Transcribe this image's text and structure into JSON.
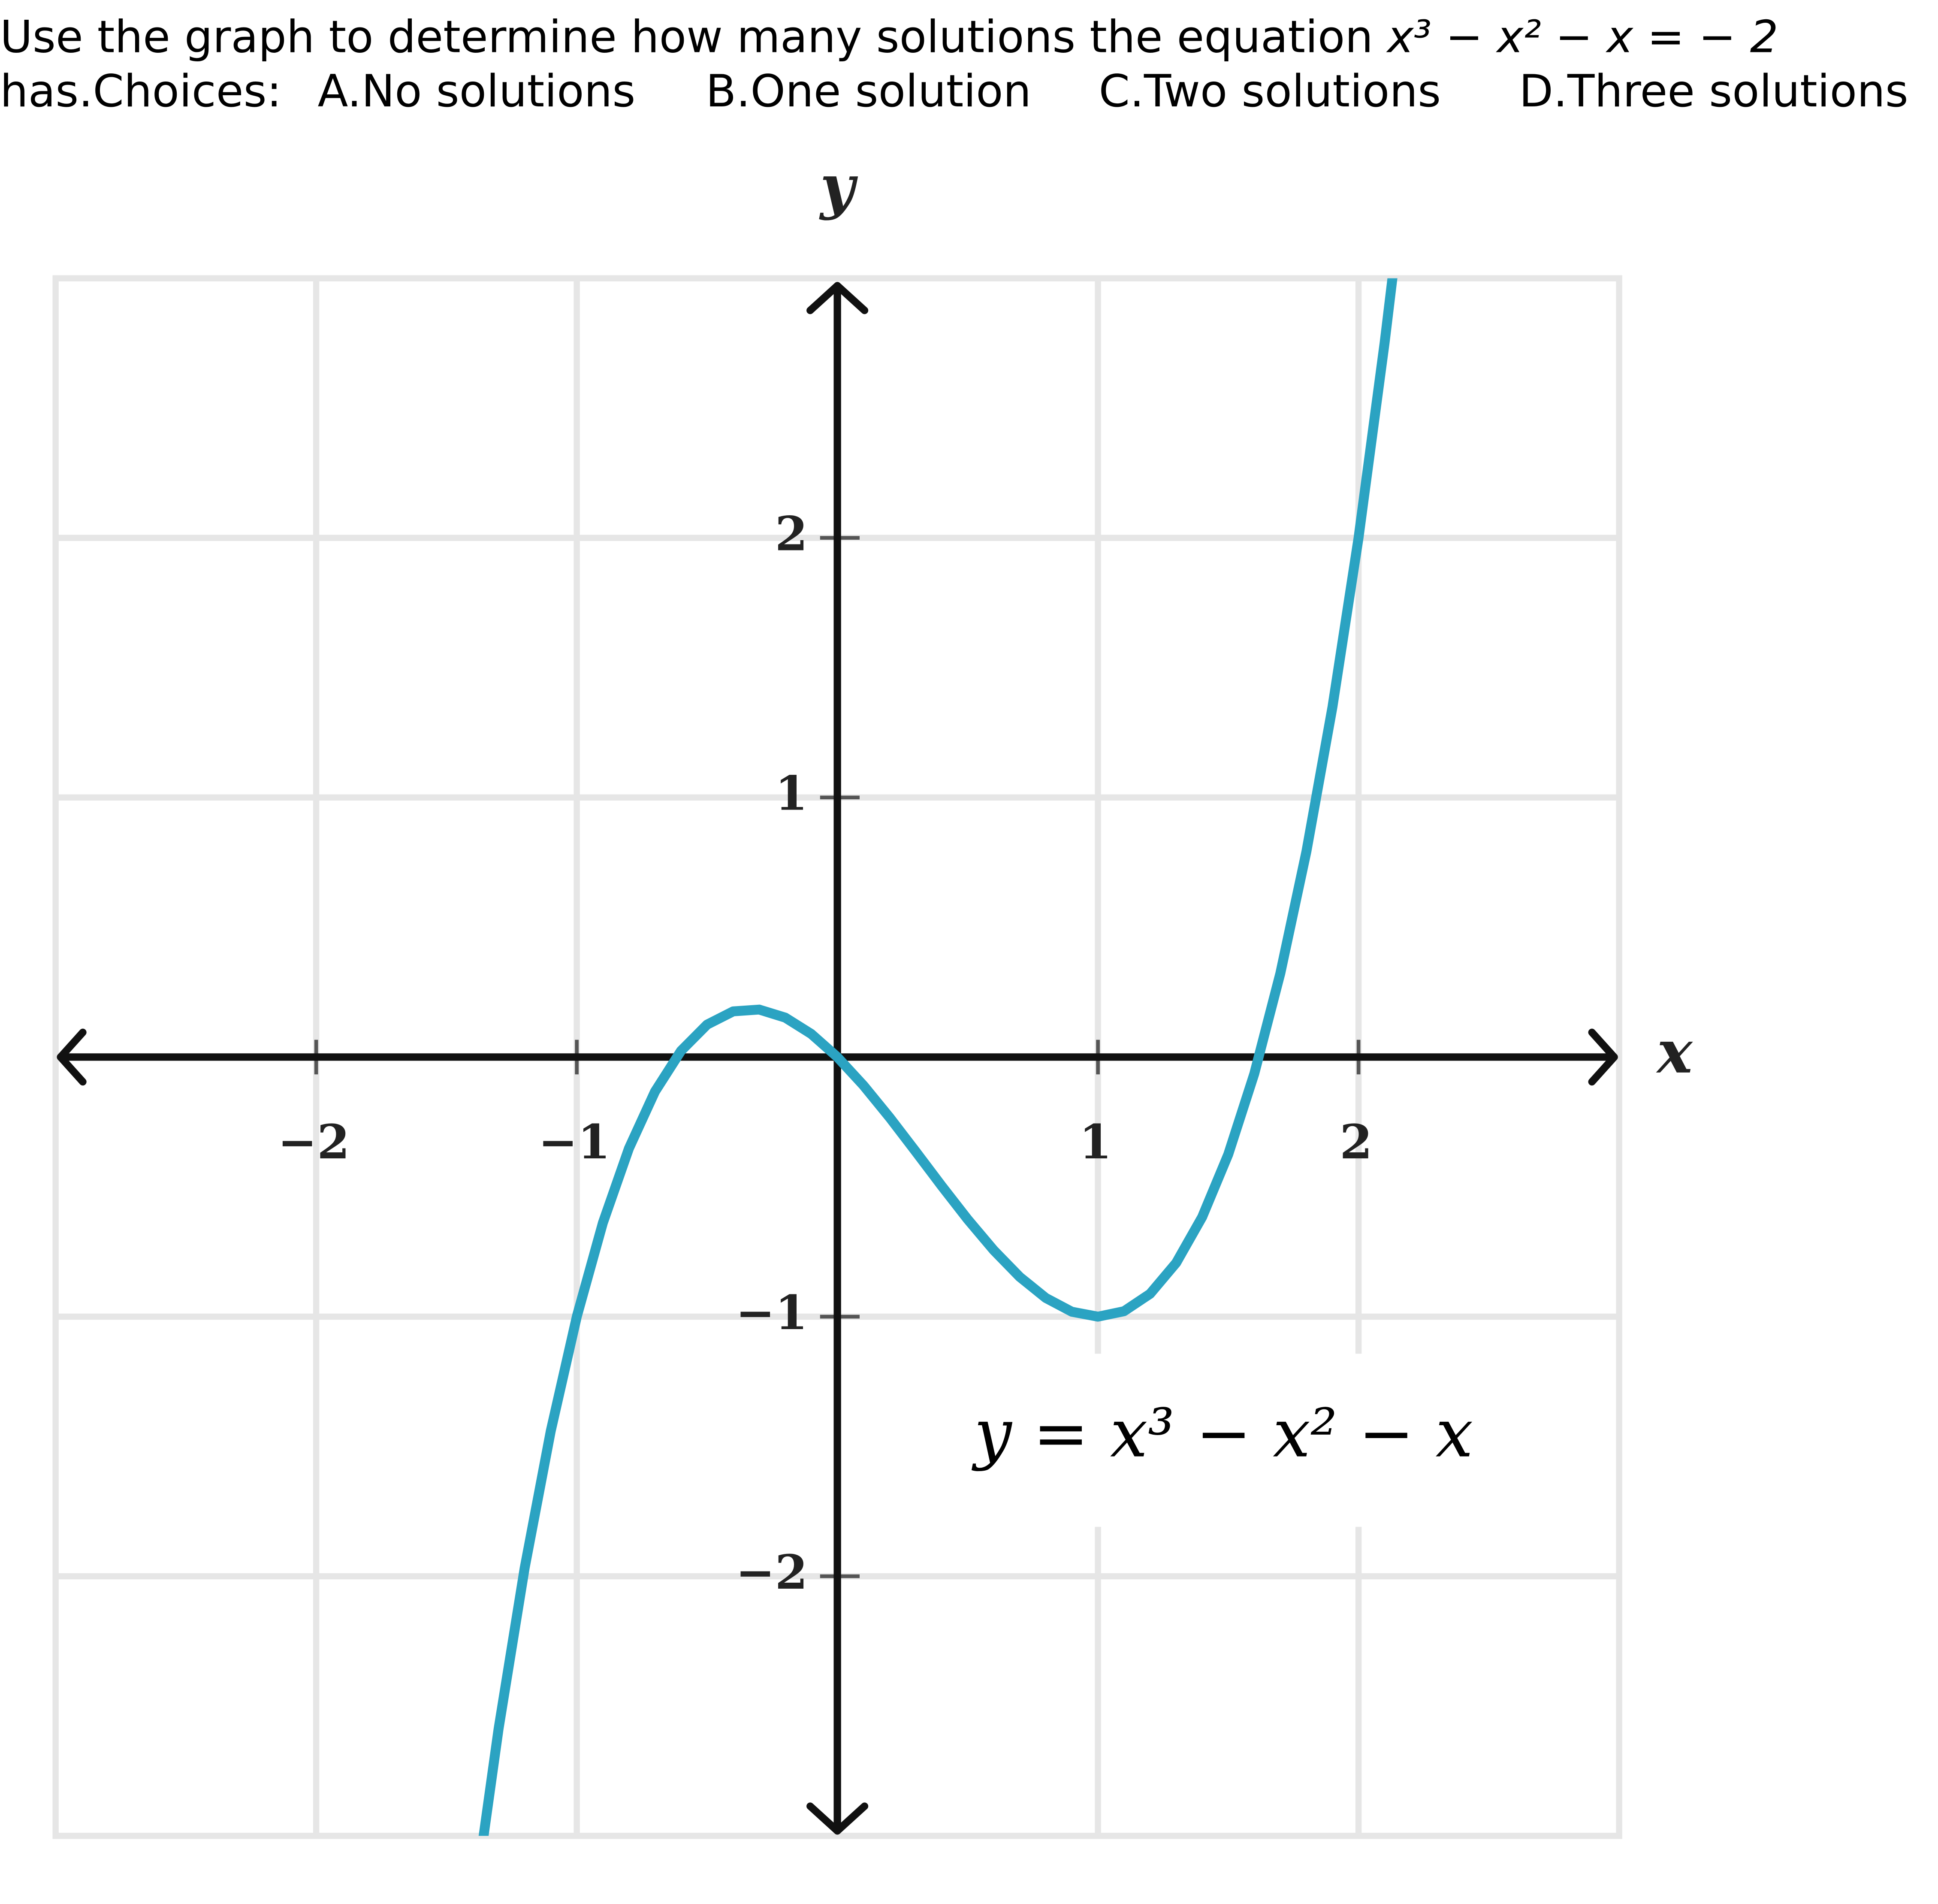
{
  "question": {
    "text_before": "Use the graph to determine how many solutions the equation",
    "equation": "x³ − x² − x = − 2",
    "text_after": "has.",
    "choices_label": "Choices:",
    "choices": [
      "A.No solutions",
      "B.One solution",
      "C.Two solutions",
      "D.Three solutions"
    ]
  },
  "chart_data": {
    "type": "line",
    "x_label": "x",
    "y_label": "y",
    "annotation": "y = x³ − x² − x",
    "xlim": [
      -3,
      3
    ],
    "ylim": [
      -3,
      3
    ],
    "xticks": [
      {
        "value": -2,
        "label": "−2"
      },
      {
        "value": -1,
        "label": "−1"
      },
      1,
      2
    ],
    "yticks": [
      {
        "value": -2,
        "label": "−2"
      },
      {
        "value": -1,
        "label": "−1"
      },
      1,
      2
    ],
    "grid": true,
    "x": [
      -1.4,
      -1.3,
      -1.2,
      -1.1,
      -1.0,
      -0.9,
      -0.8,
      -0.7,
      -0.6,
      -0.5,
      -0.4,
      -0.3,
      -0.2,
      -0.1,
      0,
      0.1,
      0.2,
      0.3,
      0.4,
      0.5,
      0.6,
      0.7,
      0.8,
      0.9,
      1.0,
      1.1,
      1.2,
      1.3,
      1.4,
      1.5,
      1.6,
      1.7,
      1.8,
      1.9,
      2.0,
      2.1,
      2.15
    ],
    "series": [
      {
        "color": "#2ba3c2",
        "values": [
          -3.304,
          -2.587,
          -1.968,
          -1.441,
          -1,
          -0.639,
          -0.352,
          -0.133,
          0.024,
          0.125,
          0.176,
          0.183,
          0.152,
          0.089,
          0,
          -0.109,
          -0.232,
          -0.363,
          -0.496,
          -0.625,
          -0.744,
          -0.847,
          -0.928,
          -0.981,
          -1,
          -0.979,
          -0.912,
          -0.793,
          -0.616,
          -0.375,
          -0.064,
          0.323,
          0.792,
          1.349,
          2,
          2.751,
          3.166
        ]
      }
    ]
  }
}
